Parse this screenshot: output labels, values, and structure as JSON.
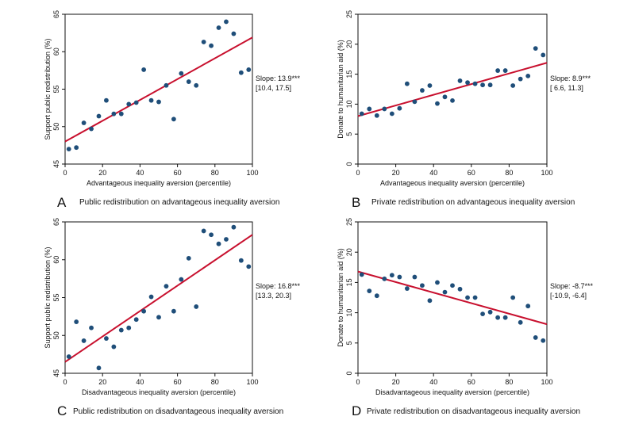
{
  "chart_data": [
    {
      "type": "scatter",
      "panel_letter": "A",
      "caption": "Public redistribution on advantageous inequality aversion",
      "xlabel": "Advantageous inequality aversion (percentile)",
      "ylabel": "Support public redistribution (%)",
      "xlim": [
        0,
        100
      ],
      "ylim": [
        45,
        65
      ],
      "xticks": [
        0,
        20,
        40,
        60,
        80,
        100
      ],
      "yticks": [
        45,
        50,
        55,
        60,
        65
      ],
      "slope_label": "Slope: 13.9***",
      "ci_label": "[10.4, 17.5]",
      "fit": {
        "x": [
          0,
          100
        ],
        "y": [
          48.0,
          61.9
        ]
      },
      "x": [
        2,
        6,
        10,
        14,
        18,
        22,
        26,
        30,
        34,
        38,
        42,
        46,
        50,
        54,
        58,
        62,
        66,
        70,
        74,
        78,
        82,
        86,
        90,
        94,
        98
      ],
      "y": [
        47.0,
        47.2,
        50.5,
        49.7,
        51.4,
        53.5,
        51.7,
        51.7,
        53.0,
        53.2,
        57.6,
        53.5,
        53.3,
        55.5,
        51.0,
        57.1,
        56.0,
        55.5,
        61.3,
        60.8,
        63.2,
        64.0,
        62.4,
        57.2,
        57.6
      ]
    },
    {
      "type": "scatter",
      "panel_letter": "B",
      "caption": "Private redistribution on advantageous inequality aversion",
      "xlabel": "Advantageous inequality aversion (percentile)",
      "ylabel": "Donate to humanitarian aid (%)",
      "xlim": [
        0,
        100
      ],
      "ylim": [
        0,
        25
      ],
      "xticks": [
        0,
        20,
        40,
        60,
        80,
        100
      ],
      "yticks": [
        0,
        5,
        10,
        15,
        20,
        25
      ],
      "slope_label": "Slope: 8.9***",
      "ci_label": "[ 6.6, 11.3]",
      "fit": {
        "x": [
          0,
          100
        ],
        "y": [
          8.0,
          16.9
        ]
      },
      "x": [
        2,
        6,
        10,
        14,
        18,
        22,
        26,
        30,
        34,
        38,
        42,
        46,
        50,
        54,
        58,
        62,
        66,
        70,
        74,
        78,
        82,
        86,
        90,
        94,
        98
      ],
      "y": [
        8.4,
        9.2,
        8.1,
        9.2,
        8.4,
        9.3,
        13.4,
        10.4,
        12.3,
        13.1,
        10.1,
        11.2,
        10.6,
        13.9,
        13.6,
        13.4,
        13.2,
        13.2,
        15.6,
        15.6,
        13.1,
        14.2,
        14.7,
        19.3,
        18.2
      ]
    },
    {
      "type": "scatter",
      "panel_letter": "C",
      "caption": "Public redistribution on disadvantageous inequality aversion",
      "xlabel": "Disadvantageous inequality aversion (percentile)",
      "ylabel": "Support public redistribution (%)",
      "xlim": [
        0,
        100
      ],
      "ylim": [
        45,
        65
      ],
      "xticks": [
        0,
        20,
        40,
        60,
        80,
        100
      ],
      "yticks": [
        45,
        50,
        55,
        60,
        65
      ],
      "slope_label": "Slope: 16.8***",
      "ci_label": "[13.3, 20.3]",
      "fit": {
        "x": [
          0,
          100
        ],
        "y": [
          46.5,
          63.3
        ]
      },
      "x": [
        2,
        6,
        10,
        14,
        18,
        22,
        26,
        30,
        34,
        38,
        42,
        46,
        50,
        54,
        58,
        62,
        66,
        70,
        74,
        78,
        82,
        86,
        90,
        94,
        98
      ],
      "y": [
        47.2,
        51.8,
        49.3,
        51.0,
        45.7,
        49.6,
        48.5,
        50.7,
        51.0,
        52.1,
        53.2,
        55.1,
        52.4,
        56.5,
        53.2,
        57.4,
        60.2,
        53.8,
        63.8,
        63.3,
        62.1,
        62.7,
        64.3,
        59.9,
        59.1
      ]
    },
    {
      "type": "scatter",
      "panel_letter": "D",
      "caption": "Private redistribution on disadvantageous inequality aversion",
      "xlabel": "Disadvantageous inequality aversion (percentile)",
      "ylabel": "Donate to humanitarian aid (%)",
      "xlim": [
        0,
        100
      ],
      "ylim": [
        0,
        25
      ],
      "xticks": [
        0,
        20,
        40,
        60,
        80,
        100
      ],
      "yticks": [
        0,
        5,
        10,
        15,
        20,
        25
      ],
      "slope_label": "Slope: -8.7***",
      "ci_label": "[-10.9, -6.4]",
      "fit": {
        "x": [
          0,
          100
        ],
        "y": [
          16.8,
          8.1
        ]
      },
      "x": [
        2,
        6,
        10,
        14,
        18,
        22,
        26,
        30,
        34,
        38,
        42,
        46,
        50,
        54,
        58,
        62,
        66,
        70,
        74,
        78,
        82,
        86,
        90,
        94,
        98
      ],
      "y": [
        16.3,
        13.6,
        12.8,
        15.6,
        16.2,
        15.9,
        14.0,
        15.9,
        14.5,
        12.0,
        15.0,
        13.4,
        14.5,
        13.9,
        12.5,
        12.5,
        9.8,
        10.1,
        9.2,
        9.2,
        12.5,
        8.4,
        11.1,
        5.9,
        5.4
      ]
    }
  ],
  "colors": {
    "point": "#1f4e79",
    "fit_line": "#c8102e",
    "frame": "#111111",
    "text": "#111111"
  }
}
